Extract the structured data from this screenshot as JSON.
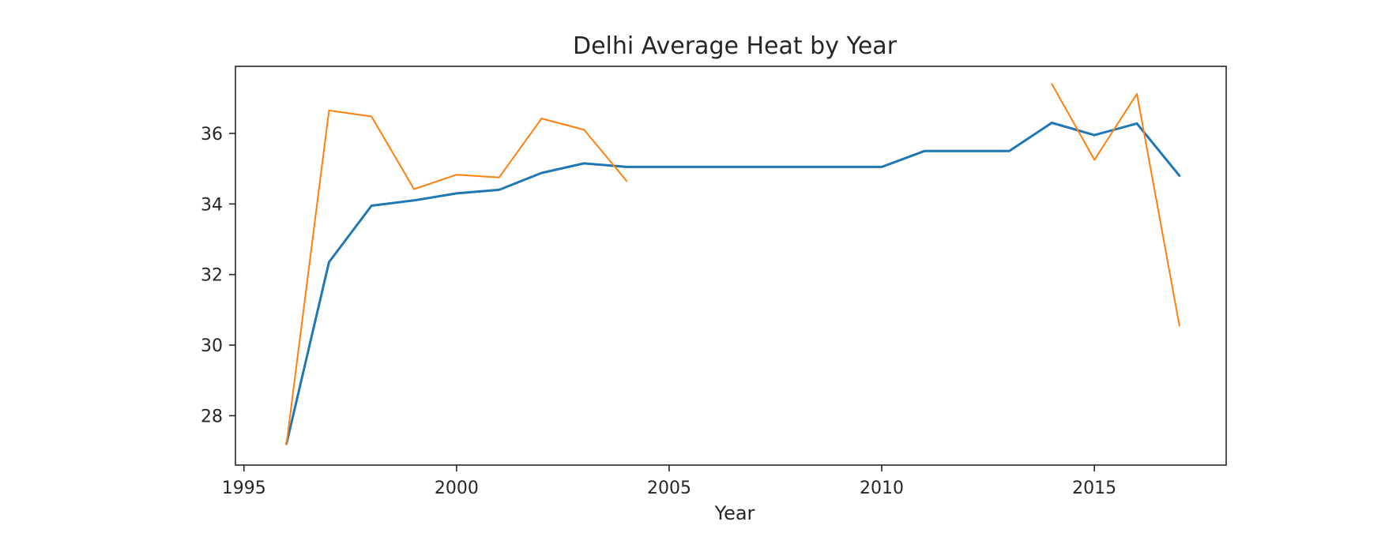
{
  "chart_data": {
    "type": "line",
    "title": "Delhi Average Heat by Year",
    "xlabel": "Year",
    "ylabel": "",
    "xlim": [
      1994.8,
      2018.1
    ],
    "ylim": [
      26.6,
      37.9
    ],
    "x_ticks": [
      1995,
      2000,
      2005,
      2010,
      2015
    ],
    "y_ticks": [
      28,
      30,
      32,
      34,
      36
    ],
    "grid": false,
    "series": [
      {
        "color": "#1f77b4",
        "x": [
          1996,
          1997,
          1998,
          1999,
          2000,
          2001,
          2002,
          2003,
          2004,
          2005,
          2006,
          2007,
          2008,
          2009,
          2010,
          2011,
          2012,
          2013,
          2014,
          2015,
          2016,
          2017
        ],
        "y": [
          27.2,
          32.35,
          33.95,
          34.1,
          34.3,
          34.4,
          34.88,
          35.15,
          35.05,
          35.05,
          35.05,
          35.05,
          35.05,
          35.05,
          35.05,
          35.5,
          35.5,
          35.5,
          36.3,
          35.95,
          36.28,
          34.8
        ]
      },
      {
        "color": "#ff7f0e",
        "x": [
          1996,
          1997,
          1998,
          1999,
          2000,
          2001,
          2002,
          2003,
          2004,
          2014,
          2015,
          2016,
          2017
        ],
        "y": [
          27.2,
          36.65,
          36.48,
          34.42,
          34.83,
          34.75,
          36.42,
          36.1,
          34.65,
          37.4,
          35.25,
          37.12,
          30.55
        ],
        "segments": [
          [
            0,
            8
          ],
          [
            9,
            12
          ]
        ]
      }
    ]
  }
}
